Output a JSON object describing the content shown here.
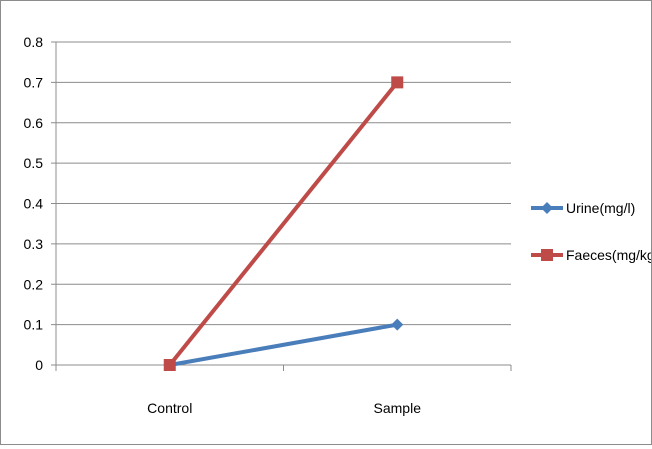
{
  "chart_data": {
    "type": "line",
    "categories": [
      "Control",
      "Sample"
    ],
    "series": [
      {
        "name": "Urine(mg/l)",
        "values": [
          0,
          0.1
        ],
        "color": "#4a7ebb",
        "marker": "diamond"
      },
      {
        "name": "Faeces(mg/kg)",
        "values": [
          0,
          0.7
        ],
        "color": "#be4b48",
        "marker": "square"
      }
    ],
    "title": "",
    "xlabel": "",
    "ylabel": "",
    "ylim": [
      0,
      0.8
    ],
    "yticks": [
      "0",
      "0.1",
      "0.2",
      "0.3",
      "0.4",
      "0.5",
      "0.6",
      "0.7",
      "0.8"
    ],
    "grid": true,
    "legend_position": "right"
  }
}
